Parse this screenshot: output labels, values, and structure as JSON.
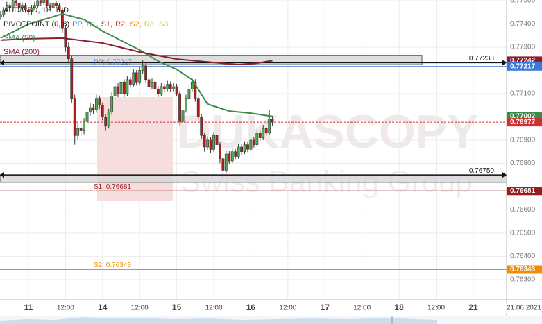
{
  "chart_data": {
    "type": "candlestick",
    "title": "AUD/USD, 1H, BID",
    "pivot_legend": {
      "name": "PIVOTPOINT (0, 8)",
      "items": [
        {
          "name": "PP,",
          "color": "#3c78d8"
        },
        {
          "name": "R1,",
          "color": "#2e7d32"
        },
        {
          "name": "S1,",
          "color": "#c62828"
        },
        {
          "name": "R2,",
          "color": "#c62828"
        },
        {
          "name": "S2,",
          "color": "#ef8c00"
        },
        {
          "name": "R3,",
          "color": "#e6c800"
        },
        {
          "name": "S3",
          "color": "#e6c800"
        }
      ]
    },
    "watermark": [
      "DUKASCOPY",
      "Swiss Banking Group"
    ],
    "date_label": "21.06.2021",
    "up_color": "#4caf50",
    "down_color": "#b71c1c",
    "x": [
      -9,
      -8,
      -7,
      -6,
      -5,
      -4,
      -3,
      -2,
      -1,
      0,
      1,
      2,
      3,
      4,
      5,
      6,
      7,
      8,
      9,
      10,
      11,
      12,
      13,
      14,
      15,
      16,
      17,
      18,
      19,
      20,
      21,
      22,
      23,
      24,
      25,
      26,
      27,
      28,
      29,
      30,
      31,
      32,
      33,
      34,
      35,
      36,
      37,
      38,
      39,
      40,
      41,
      42,
      43,
      44,
      45,
      46,
      47,
      48,
      49,
      50,
      51,
      52,
      53,
      54,
      55,
      56,
      57,
      58,
      59,
      60,
      61,
      62,
      63,
      64,
      65,
      66,
      67,
      68,
      69,
      70,
      71,
      72,
      73,
      74,
      75,
      76,
      77,
      78,
      79
    ],
    "open": [
      0.7743,
      0.7744,
      0.7746,
      0.7748,
      0.7747,
      0.775,
      0.7749,
      0.7747,
      0.7748,
      0.7746,
      0.7745,
      0.7747,
      0.7748,
      0.775,
      0.7749,
      0.7751,
      0.7748,
      0.7747,
      0.7749,
      0.7748,
      0.7746,
      0.7738,
      0.773,
      0.7725,
      0.7708,
      0.7692,
      0.7695,
      0.7694,
      0.7698,
      0.7702,
      0.7704,
      0.7703,
      0.7708,
      0.7705,
      0.77,
      0.7696,
      0.7702,
      0.7709,
      0.7713,
      0.771,
      0.7715,
      0.771,
      0.7716,
      0.7714,
      0.7719,
      0.7715,
      0.772,
      0.7722,
      0.7716,
      0.7713,
      0.7715,
      0.7712,
      0.771,
      0.7713,
      0.7712,
      0.7714,
      0.7712,
      0.7713,
      0.771,
      0.7698,
      0.7703,
      0.7708,
      0.7712,
      0.7715,
      0.7708,
      0.77,
      0.7692,
      0.7687,
      0.769,
      0.7686,
      0.7692,
      0.7688,
      0.7682,
      0.7677,
      0.7684,
      0.7681,
      0.7685,
      0.7683,
      0.7687,
      0.7685,
      0.7688,
      0.7686,
      0.769,
      0.7688,
      0.7693,
      0.7691,
      0.7695,
      0.7693,
      0.7699
    ],
    "high": [
      0.77455,
      0.77472,
      0.77495,
      0.77492,
      0.77515,
      0.77512,
      0.77498,
      0.77492,
      0.77488,
      0.77472,
      0.77482,
      0.77495,
      0.77512,
      0.7751,
      0.77525,
      0.77518,
      0.77492,
      0.77502,
      0.77498,
      0.77488,
      0.7747,
      0.77395,
      0.7732,
      0.77265,
      0.77095,
      0.76975,
      0.76968,
      0.76995,
      0.77035,
      0.77058,
      0.77055,
      0.77095,
      0.77092,
      0.77062,
      0.77012,
      0.77035,
      0.77105,
      0.77148,
      0.77145,
      0.77165,
      0.77162,
      0.77175,
      0.77172,
      0.77205,
      0.77202,
      0.77218,
      0.77245,
      0.77232,
      0.77172,
      0.77165,
      0.77162,
      0.77132,
      0.77145,
      0.77142,
      0.77155,
      0.77152,
      0.77145,
      0.77142,
      0.77112,
      0.77045,
      0.77095,
      0.77138,
      0.77168,
      0.77162,
      0.77092,
      0.77012,
      0.76932,
      0.76915,
      0.76912,
      0.76935,
      0.76932,
      0.76892,
      0.76832,
      0.76855,
      0.76852,
      0.76865,
      0.76862,
      0.76885,
      0.76882,
      0.76895,
      0.76892,
      0.76915,
      0.76912,
      0.76945,
      0.76942,
      0.76965,
      0.76962,
      0.7703,
      0.77005
    ],
    "low": [
      0.77418,
      0.77428,
      0.7745,
      0.77458,
      0.77462,
      0.77478,
      0.77455,
      0.7746,
      0.77448,
      0.77438,
      0.7744,
      0.77462,
      0.7747,
      0.77478,
      0.77482,
      0.7747,
      0.77455,
      0.77462,
      0.77468,
      0.7745,
      0.7736,
      0.7728,
      0.7723,
      0.7706,
      0.7688,
      0.769,
      0.76915,
      0.76925,
      0.76965,
      0.77005,
      0.77012,
      0.77018,
      0.77035,
      0.76985,
      0.7694,
      0.7695,
      0.77008,
      0.77078,
      0.77085,
      0.77088,
      0.77085,
      0.7709,
      0.77125,
      0.77128,
      0.77135,
      0.7714,
      0.77185,
      0.77145,
      0.77115,
      0.77118,
      0.77105,
      0.77085,
      0.7709,
      0.77108,
      0.7711,
      0.77108,
      0.7711,
      0.77088,
      0.7696,
      0.76968,
      0.77018,
      0.77068,
      0.77108,
      0.77065,
      0.76985,
      0.76905,
      0.7685,
      0.76858,
      0.76845,
      0.7685,
      0.76865,
      0.768,
      0.7674,
      0.76755,
      0.76795,
      0.768,
      0.76818,
      0.7682,
      0.76838,
      0.7684,
      0.76848,
      0.7685,
      0.76868,
      0.7687,
      0.76898,
      0.769,
      0.76918,
      0.7692,
      0.7696
    ],
    "close": [
      0.7744,
      0.7746,
      0.7748,
      0.7747,
      0.775,
      0.7749,
      0.7747,
      0.7748,
      0.7746,
      0.7745,
      0.7747,
      0.7748,
      0.775,
      0.7749,
      0.7751,
      0.7748,
      0.7747,
      0.7749,
      0.7748,
      0.7746,
      0.7738,
      0.773,
      0.7725,
      0.7708,
      0.7692,
      0.7695,
      0.7694,
      0.7698,
      0.7702,
      0.7704,
      0.7703,
      0.7708,
      0.7705,
      0.77,
      0.7696,
      0.7702,
      0.7709,
      0.7713,
      0.771,
      0.7715,
      0.771,
      0.7716,
      0.7714,
      0.7719,
      0.7715,
      0.772,
      0.7722,
      0.7716,
      0.7713,
      0.7715,
      0.7712,
      0.771,
      0.7713,
      0.7712,
      0.7714,
      0.7712,
      0.7713,
      0.771,
      0.7698,
      0.7703,
      0.7708,
      0.7712,
      0.7715,
      0.7708,
      0.77,
      0.7692,
      0.7687,
      0.769,
      0.7686,
      0.7692,
      0.7688,
      0.7682,
      0.7677,
      0.7684,
      0.7681,
      0.7685,
      0.7683,
      0.7687,
      0.7685,
      0.7688,
      0.7686,
      0.769,
      0.7688,
      0.7693,
      0.7691,
      0.7695,
      0.7693,
      0.7699,
      0.76977
    ],
    "xlim": [
      -9.2,
      154.8
    ],
    "xticks": [
      {
        "value": 0,
        "label": "11"
      },
      {
        "value": 12,
        "label": "12:00"
      },
      {
        "value": 24,
        "label": "14"
      },
      {
        "value": 36,
        "label": "12:00"
      },
      {
        "value": 48,
        "label": "15"
      },
      {
        "value": 60,
        "label": "12:00"
      },
      {
        "value": 72,
        "label": "16"
      },
      {
        "value": 84,
        "label": "12:00"
      },
      {
        "value": 96,
        "label": "17"
      },
      {
        "value": 108,
        "label": "12:00"
      },
      {
        "value": 120,
        "label": "18"
      },
      {
        "value": 132,
        "label": "12:00"
      },
      {
        "value": 144,
        "label": "21"
      }
    ],
    "ylim": [
      0.76213,
      0.77503
    ],
    "yticks": [
      {
        "value": 0.775,
        "label": "0.77500"
      },
      {
        "value": 0.774,
        "label": "0.77400"
      },
      {
        "value": 0.773,
        "label": "0.77300"
      },
      {
        "value": 0.771,
        "label": "0.77100"
      },
      {
        "value": 0.769,
        "label": "0.76900"
      },
      {
        "value": 0.768,
        "label": "0.76800"
      },
      {
        "value": 0.766,
        "label": "0.76600"
      },
      {
        "value": 0.765,
        "label": "0.76500"
      },
      {
        "value": 0.764,
        "label": "0.76400"
      },
      {
        "value": 0.763,
        "label": "0.76300"
      }
    ],
    "grid": true,
    "overlays": [
      {
        "name": "SMA (50)",
        "color": "#3d8a4a",
        "x": [
          -9,
          0,
          11,
          18,
          24,
          36,
          42,
          48,
          53,
          58,
          65,
          72,
          79
        ],
        "values": [
          0.77339,
          0.77399,
          0.77443,
          0.77419,
          0.77369,
          0.77288,
          0.7724,
          0.77204,
          0.7716,
          0.77055,
          0.77025,
          0.77016,
          0.77002
        ],
        "last_label": "0.77002"
      },
      {
        "name": "SMA (200)",
        "color": "#8b1e2e",
        "x": [
          -9,
          0,
          11,
          24,
          36,
          48,
          60,
          68,
          74,
          79
        ],
        "values": [
          0.7733,
          0.77336,
          0.77339,
          0.77318,
          0.77279,
          0.77249,
          0.77234,
          0.77225,
          0.77231,
          0.77242
        ],
        "last_label": "0.77242"
      }
    ],
    "levels": [
      {
        "label": "PP: 0.77217",
        "value": 0.77217,
        "axis_label": "0.77217",
        "color": "#3c78d8"
      },
      {
        "label": "S1: 0.76681",
        "value": 0.76681,
        "axis_label": "0.76681",
        "color": "#9b1c1c"
      },
      {
        "label": "S2: 0.76343",
        "value": 0.76343,
        "axis_label": "0.76343",
        "color": "#ef8c00"
      }
    ],
    "bands": [
      {
        "value": 0.77233,
        "label": "0.77233",
        "low": 0.77225,
        "high": 0.77265,
        "x_end": 127.4
      },
      {
        "value": 0.7675,
        "label": "0.76750",
        "low": 0.76718,
        "high": 0.7675,
        "x_end": 154.8
      }
    ],
    "current": {
      "value": 0.76977,
      "label": "0.76977",
      "color": "#d32f2f"
    }
  }
}
